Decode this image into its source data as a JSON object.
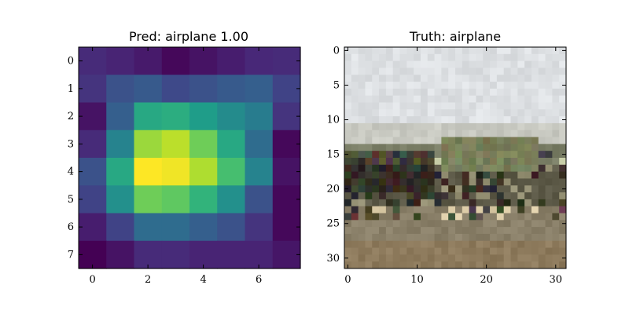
{
  "chart_data": [
    {
      "type": "heatmap",
      "title": "Pred: airplane 1.00",
      "xlabel": "",
      "ylabel": "",
      "colormap": "viridis",
      "x_range": [
        -0.5,
        7.5
      ],
      "y_range": [
        -0.5,
        7.5
      ],
      "x_ticks": [
        0,
        2,
        4,
        6
      ],
      "y_ticks": [
        0,
        1,
        2,
        3,
        4,
        5,
        6,
        7
      ],
      "grid": false,
      "values": [
        [
          0.12,
          0.1,
          0.07,
          0.02,
          0.05,
          0.08,
          0.11,
          0.12
        ],
        [
          0.15,
          0.25,
          0.28,
          0.22,
          0.25,
          0.28,
          0.3,
          0.2
        ],
        [
          0.05,
          0.3,
          0.6,
          0.62,
          0.55,
          0.48,
          0.42,
          0.15
        ],
        [
          0.12,
          0.45,
          0.85,
          0.9,
          0.78,
          0.6,
          0.35,
          0.02
        ],
        [
          0.25,
          0.6,
          1.0,
          0.98,
          0.88,
          0.7,
          0.45,
          0.05
        ],
        [
          0.2,
          0.5,
          0.78,
          0.75,
          0.65,
          0.5,
          0.25,
          0.02
        ],
        [
          0.08,
          0.2,
          0.35,
          0.35,
          0.3,
          0.25,
          0.15,
          0.02
        ],
        [
          0.0,
          0.05,
          0.12,
          0.12,
          0.1,
          0.1,
          0.1,
          0.06
        ]
      ]
    },
    {
      "type": "image",
      "title": "Truth: airplane",
      "xlabel": "",
      "ylabel": "",
      "x_range": [
        -0.5,
        31.5
      ],
      "y_range": [
        -0.5,
        31.5
      ],
      "x_ticks": [
        0,
        10,
        20,
        30
      ],
      "y_ticks": [
        0,
        5,
        10,
        15,
        20,
        25,
        30
      ],
      "grid": false,
      "scene_rows": [
        {
          "from": 0,
          "to": 11,
          "color": "#dde0e3"
        },
        {
          "from": 11,
          "to": 14,
          "color": "#c9cac2"
        },
        {
          "from": 14,
          "to": 17,
          "color": "#7a7e66"
        },
        {
          "from": 17,
          "to": 23,
          "color": "#5d5a48"
        },
        {
          "from": 23,
          "to": 28,
          "color": "#8a8069"
        },
        {
          "from": 28,
          "to": 32,
          "color": "#8d7a5c"
        }
      ]
    }
  ]
}
